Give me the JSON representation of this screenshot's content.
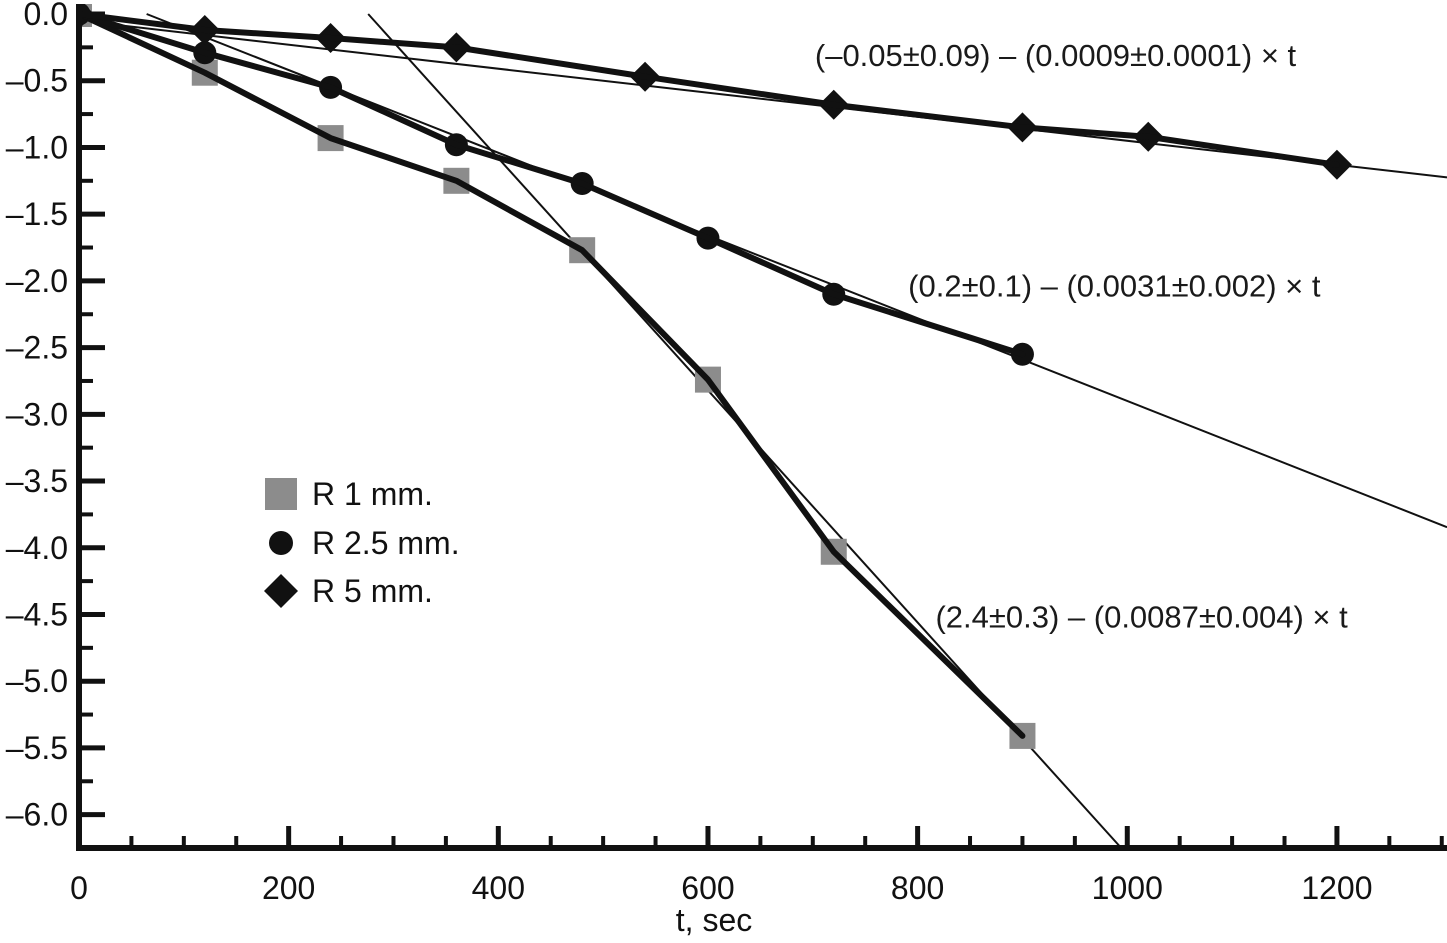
{
  "figure": {
    "background": "#ffffff",
    "ink_color": "#111111",
    "gray_color": "#8c8c8c"
  },
  "chart_data": {
    "type": "scatter",
    "title": "",
    "xlabel": "t, sec",
    "ylabel": "",
    "xlim": [
      0,
      1305
    ],
    "ylim": [
      -6.25,
      0
    ],
    "grid": false,
    "x_axis": {
      "major_values": [
        0,
        200,
        400,
        600,
        800,
        1000,
        1200
      ],
      "major_labels": [
        "0",
        "200",
        "400",
        "600",
        "800",
        "1000",
        "1200"
      ],
      "minor_step": 50,
      "minor_max": 1300
    },
    "y_axis": {
      "major_values": [
        0,
        -0.5,
        -1.0,
        -1.5,
        -2.0,
        -2.5,
        -3.0,
        -3.5,
        -4.0,
        -4.5,
        -5.0,
        -5.5,
        -6.0
      ],
      "major_labels": [
        "0.0",
        "–0.5",
        "–1.0",
        "–1.5",
        "–2.0",
        "–2.5",
        "–3.0",
        "–3.5",
        "–4.0",
        "–4.5",
        "–5.0",
        "–5.5",
        "–6.0"
      ],
      "minor_step": 0.25,
      "minor_min": -6.0
    },
    "series": [
      {
        "name": "R 1 mm.",
        "marker": "square",
        "marker_color": "#8c8c8c",
        "line_color": "#111111",
        "x": [
          0,
          120,
          240,
          360,
          480,
          600,
          720,
          900
        ],
        "y": [
          0,
          -0.44,
          -0.93,
          -1.25,
          -1.77,
          -2.74,
          -4.03,
          -5.41
        ],
        "fit": {
          "label": "(2.4±0.3) – (0.0087±0.004) × t",
          "intercept": 2.4,
          "slope": -0.0087,
          "label_anchor_x": 817,
          "label_anchor_y": -4.52
        }
      },
      {
        "name": "R 2.5 mm.",
        "marker": "circle",
        "marker_color": "#111111",
        "line_color": "#111111",
        "x": [
          0,
          120,
          240,
          360,
          480,
          600,
          720,
          900
        ],
        "y": [
          0,
          -0.29,
          -0.55,
          -0.98,
          -1.27,
          -1.68,
          -2.1,
          -2.55
        ],
        "fit": {
          "label": "(0.2±0.1) – (0.0031±0.002) × t",
          "intercept": 0.2,
          "slope": -0.0031,
          "label_anchor_x": 791,
          "label_anchor_y": -2.04
        }
      },
      {
        "name": "R 5 mm.",
        "marker": "diamond",
        "marker_color": "#111111",
        "line_color": "#111111",
        "x": [
          0,
          120,
          240,
          360,
          540,
          720,
          900,
          1020,
          1200
        ],
        "y": [
          0,
          -0.12,
          -0.18,
          -0.25,
          -0.47,
          -0.68,
          -0.85,
          -0.92,
          -1.13
        ],
        "fit": {
          "label": "(–0.05±0.09) – (0.0009±0.0001) × t",
          "intercept": -0.05,
          "slope": -0.0009,
          "label_anchor_x": 702,
          "label_anchor_y": -0.31
        }
      }
    ],
    "legend": {
      "position": "left-middle",
      "items": [
        {
          "marker": "square",
          "color": "#8c8c8c",
          "label": "R 1 mm."
        },
        {
          "marker": "circle",
          "color": "#111111",
          "label": "R 2.5 mm."
        },
        {
          "marker": "diamond",
          "color": "#111111",
          "label": "R 5 mm."
        }
      ]
    }
  }
}
